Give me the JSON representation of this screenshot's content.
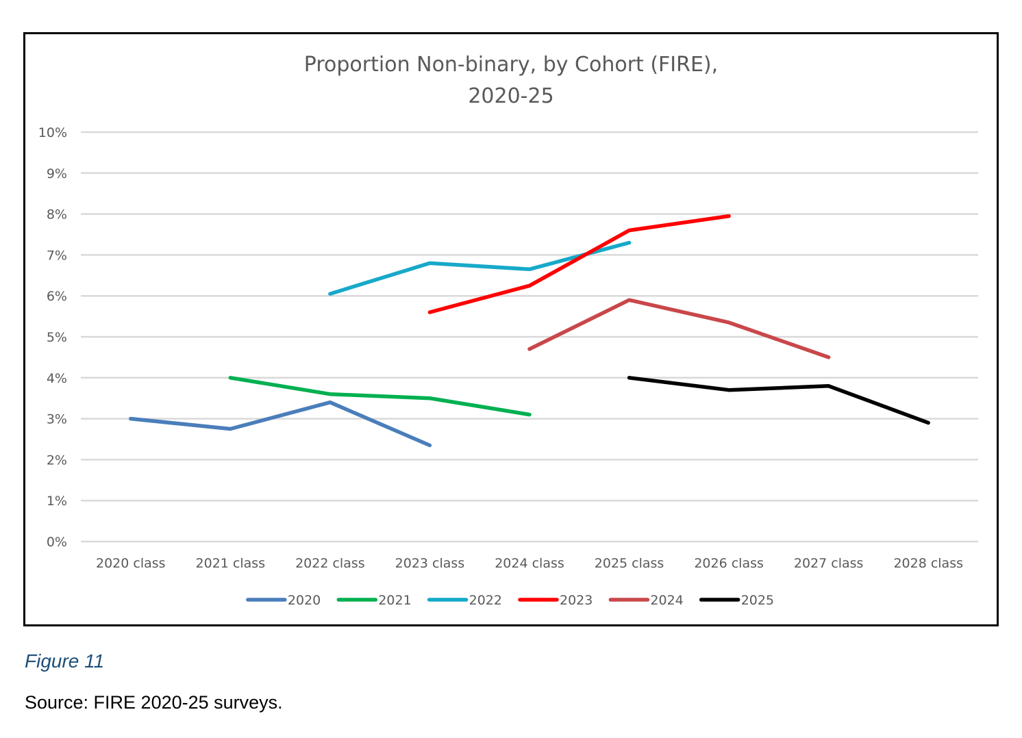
{
  "figure": {
    "caption": "Figure 11",
    "source": "Source: FIRE 2020-25 surveys."
  },
  "chart_data": {
    "type": "line",
    "title": [
      "Proportion Non-binary, by Cohort (FIRE),",
      "2020-25"
    ],
    "xlabel": "",
    "ylabel": "",
    "categories": [
      "2020 class",
      "2021 class",
      "2022 class",
      "2023 class",
      "2024 class",
      "2025 class",
      "2026 class",
      "2027 class",
      "2028 class"
    ],
    "ylim": [
      0,
      10
    ],
    "yticks": [
      0,
      1,
      2,
      3,
      4,
      5,
      6,
      7,
      8,
      9,
      10
    ],
    "ytick_labels": [
      "0%",
      "1%",
      "2%",
      "3%",
      "4%",
      "5%",
      "6%",
      "7%",
      "8%",
      "9%",
      "10%"
    ],
    "grid": true,
    "legend_position": "bottom",
    "series": [
      {
        "name": "2020",
        "color": "#4a7ebb",
        "values": [
          3.0,
          2.75,
          3.4,
          2.35,
          null,
          null,
          null,
          null,
          null
        ]
      },
      {
        "name": "2021",
        "color": "#00b050",
        "values": [
          null,
          4.0,
          3.6,
          3.5,
          3.1,
          null,
          null,
          null,
          null
        ]
      },
      {
        "name": "2022",
        "color": "#17a9c9",
        "values": [
          null,
          null,
          6.05,
          6.8,
          6.65,
          7.3,
          null,
          null,
          null
        ]
      },
      {
        "name": "2023",
        "color": "#ff0000",
        "values": [
          null,
          null,
          null,
          5.6,
          6.25,
          7.6,
          7.95,
          null,
          null
        ]
      },
      {
        "name": "2024",
        "color": "#c9474a",
        "values": [
          null,
          null,
          null,
          null,
          4.7,
          5.9,
          5.35,
          4.5,
          null
        ]
      },
      {
        "name": "2025",
        "color": "#000000",
        "values": [
          null,
          null,
          null,
          null,
          null,
          4.0,
          3.7,
          3.8,
          2.9
        ]
      }
    ]
  }
}
